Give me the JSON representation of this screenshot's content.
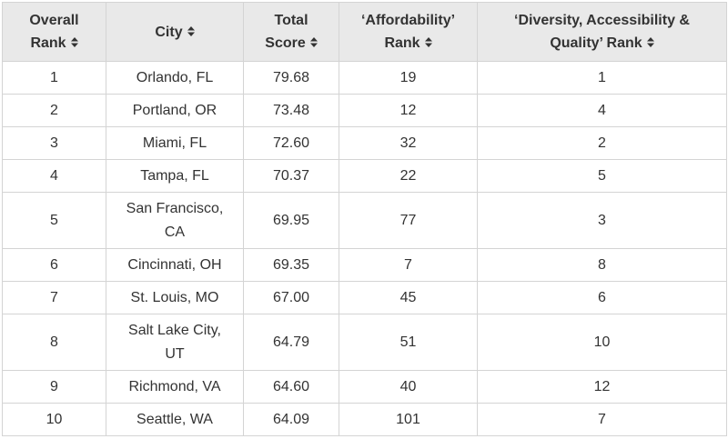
{
  "table": {
    "columns": [
      {
        "key": "overall_rank",
        "label": "Overall Rank",
        "lines": [
          "Overall",
          "Rank"
        ]
      },
      {
        "key": "city",
        "label": "City",
        "lines": [
          "City"
        ]
      },
      {
        "key": "total_score",
        "label": "Total Score",
        "lines": [
          "Total",
          "Score"
        ]
      },
      {
        "key": "affordability_rank",
        "label": "‘Affordability’ Rank",
        "lines": [
          "‘Affordability’",
          "Rank"
        ]
      },
      {
        "key": "diversity_rank",
        "label": "‘Diversity, Accessibility & Quality’ Rank",
        "lines": [
          "‘Diversity, Accessibility &",
          "Quality’ Rank"
        ]
      }
    ],
    "sort_icon": "sort-updown-icon",
    "rows": [
      {
        "overall_rank": "1",
        "city": "Orlando, FL",
        "total_score": "79.68",
        "affordability_rank": "19",
        "diversity_rank": "1"
      },
      {
        "overall_rank": "2",
        "city": "Portland, OR",
        "total_score": "73.48",
        "affordability_rank": "12",
        "diversity_rank": "4"
      },
      {
        "overall_rank": "3",
        "city": "Miami, FL",
        "total_score": "72.60",
        "affordability_rank": "32",
        "diversity_rank": "2"
      },
      {
        "overall_rank": "4",
        "city": "Tampa, FL",
        "total_score": "70.37",
        "affordability_rank": "22",
        "diversity_rank": "5"
      },
      {
        "overall_rank": "5",
        "city": "San Francisco, CA",
        "city_lines": [
          "San Francisco,",
          "CA"
        ],
        "total_score": "69.95",
        "affordability_rank": "77",
        "diversity_rank": "3"
      },
      {
        "overall_rank": "6",
        "city": "Cincinnati, OH",
        "total_score": "69.35",
        "affordability_rank": "7",
        "diversity_rank": "8"
      },
      {
        "overall_rank": "7",
        "city": "St. Louis, MO",
        "total_score": "67.00",
        "affordability_rank": "45",
        "diversity_rank": "6"
      },
      {
        "overall_rank": "8",
        "city": "Salt Lake City, UT",
        "city_lines": [
          "Salt Lake City,",
          "UT"
        ],
        "total_score": "64.79",
        "affordability_rank": "51",
        "diversity_rank": "10"
      },
      {
        "overall_rank": "9",
        "city": "Richmond, VA",
        "total_score": "64.60",
        "affordability_rank": "40",
        "diversity_rank": "12"
      },
      {
        "overall_rank": "10",
        "city": "Seattle, WA",
        "total_score": "64.09",
        "affordability_rank": "101",
        "diversity_rank": "7"
      }
    ]
  },
  "colors": {
    "header_bg": "#e9e9e9",
    "border": "#d4d4d4",
    "text": "#333333"
  }
}
